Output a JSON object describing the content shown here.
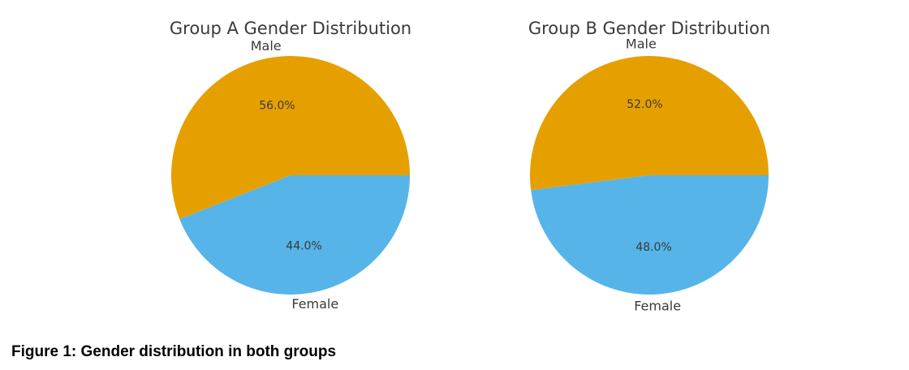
{
  "caption": "Figure 1: Gender distribution in both groups",
  "chart_data": [
    {
      "type": "pie",
      "title": "Group A Gender Distribution",
      "labels": [
        "Male",
        "Female"
      ],
      "values": [
        56.0,
        44.0
      ],
      "value_labels": [
        "56.0%",
        "44.0%"
      ],
      "colors": [
        "#E5A000",
        "#56B4E9"
      ]
    },
    {
      "type": "pie",
      "title": "Group B Gender Distribution",
      "labels": [
        "Male",
        "Female"
      ],
      "values": [
        52.0,
        48.0
      ],
      "value_labels": [
        "52.0%",
        "48.0%"
      ],
      "colors": [
        "#E5A000",
        "#56B4E9"
      ]
    }
  ]
}
